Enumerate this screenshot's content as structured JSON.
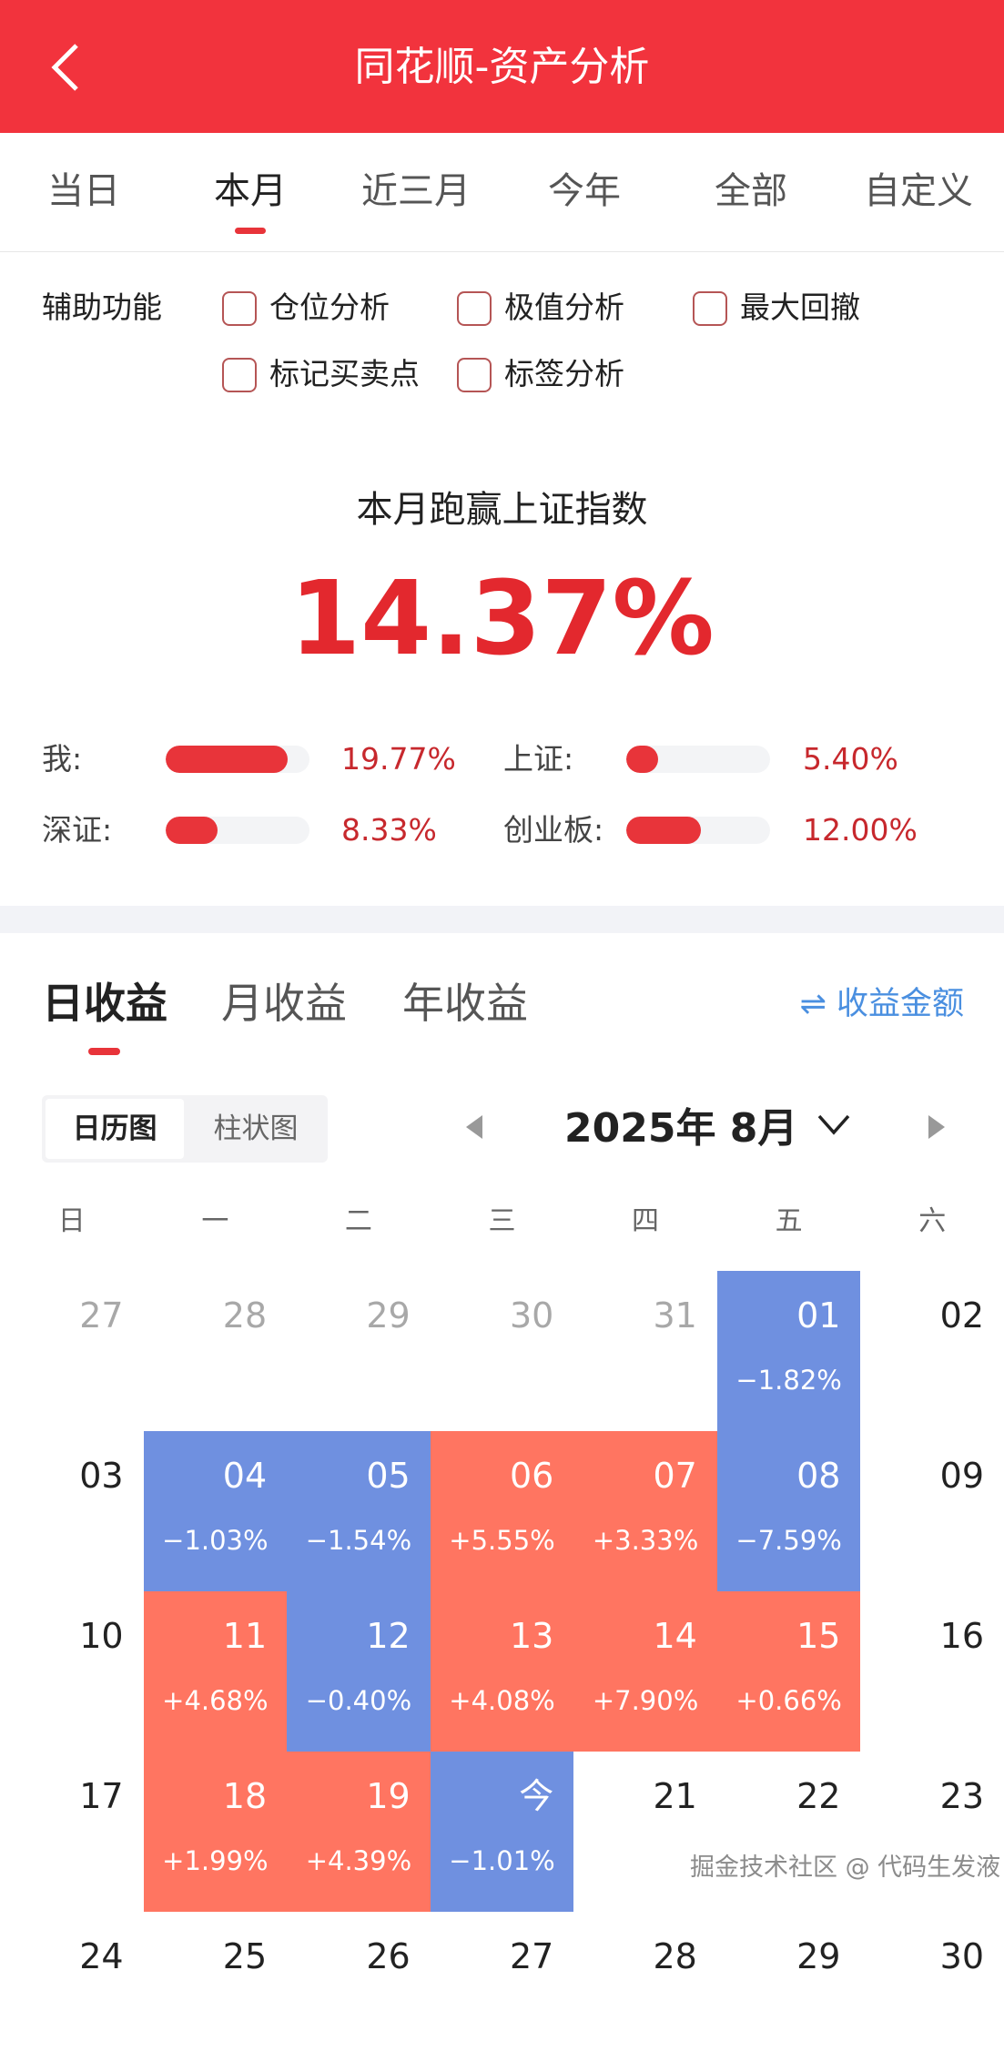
{
  "header": {
    "title": "同花顺-资产分析",
    "back_icon": "chevron-left-icon"
  },
  "period_tabs": [
    {
      "label": "当日"
    },
    {
      "label": "本月",
      "active": true
    },
    {
      "label": "近三月"
    },
    {
      "label": "今年"
    },
    {
      "label": "全部"
    },
    {
      "label": "自定义"
    }
  ],
  "aux": {
    "label": "辅助功能",
    "options": [
      {
        "label": "仓位分析",
        "checked": false
      },
      {
        "label": "极值分析",
        "checked": false
      },
      {
        "label": "最大回撤",
        "checked": false
      },
      {
        "label": "标记买卖点",
        "checked": false
      },
      {
        "label": "标签分析",
        "checked": false
      }
    ]
  },
  "summary": {
    "headline": "本月跑赢上证指数",
    "value": "14.37%"
  },
  "compare": [
    {
      "label": "我:",
      "value": "19.77%",
      "fill": 0.85
    },
    {
      "label": "上证:",
      "value": "5.40%",
      "fill": 0.15
    },
    {
      "label": "深证:",
      "value": "8.33%",
      "fill": 0.36
    },
    {
      "label": "创业板:",
      "value": "12.00%",
      "fill": 0.52
    }
  ],
  "earn_tabs": [
    {
      "label": "日收益",
      "active": true
    },
    {
      "label": "月收益"
    },
    {
      "label": "年收益"
    }
  ],
  "amount_toggle": {
    "label": "⇌ 收益金额"
  },
  "view_toggle": {
    "calendar": "日历图",
    "bar": "柱状图"
  },
  "month_nav": {
    "label": "2025年 8月"
  },
  "weekdays": [
    "日",
    "一",
    "二",
    "三",
    "四",
    "五",
    "六"
  ],
  "colors": {
    "gain": "#FF7561",
    "loss": "#6F90E0",
    "brand": "#F2333D"
  },
  "calendar": [
    [
      {
        "d": "27",
        "gray": true
      },
      {
        "d": "28",
        "gray": true
      },
      {
        "d": "29",
        "gray": true
      },
      {
        "d": "30",
        "gray": true
      },
      {
        "d": "31",
        "gray": true
      },
      {
        "d": "01",
        "p": "−1.82%",
        "c": "blue"
      },
      {
        "d": "02"
      }
    ],
    [
      {
        "d": "03"
      },
      {
        "d": "04",
        "p": "−1.03%",
        "c": "blue"
      },
      {
        "d": "05",
        "p": "−1.54%",
        "c": "blue"
      },
      {
        "d": "06",
        "p": "+5.55%",
        "c": "red"
      },
      {
        "d": "07",
        "p": "+3.33%",
        "c": "red"
      },
      {
        "d": "08",
        "p": "−7.59%",
        "c": "blue"
      },
      {
        "d": "09"
      }
    ],
    [
      {
        "d": "10"
      },
      {
        "d": "11",
        "p": "+4.68%",
        "c": "red"
      },
      {
        "d": "12",
        "p": "−0.40%",
        "c": "blue"
      },
      {
        "d": "13",
        "p": "+4.08%",
        "c": "red"
      },
      {
        "d": "14",
        "p": "+7.90%",
        "c": "red"
      },
      {
        "d": "15",
        "p": "+0.66%",
        "c": "red"
      },
      {
        "d": "16"
      }
    ],
    [
      {
        "d": "17"
      },
      {
        "d": "18",
        "p": "+1.99%",
        "c": "red"
      },
      {
        "d": "19",
        "p": "+4.39%",
        "c": "red"
      },
      {
        "d": "今",
        "p": "−1.01%",
        "c": "blue"
      },
      {
        "d": "21"
      },
      {
        "d": "22"
      },
      {
        "d": "23"
      }
    ],
    [
      {
        "d": "24"
      },
      {
        "d": "25"
      },
      {
        "d": "26"
      },
      {
        "d": "27"
      },
      {
        "d": "28"
      },
      {
        "d": "29"
      },
      {
        "d": "30"
      }
    ]
  ],
  "watermark": "掘金技术社区 @ 代码生发液"
}
